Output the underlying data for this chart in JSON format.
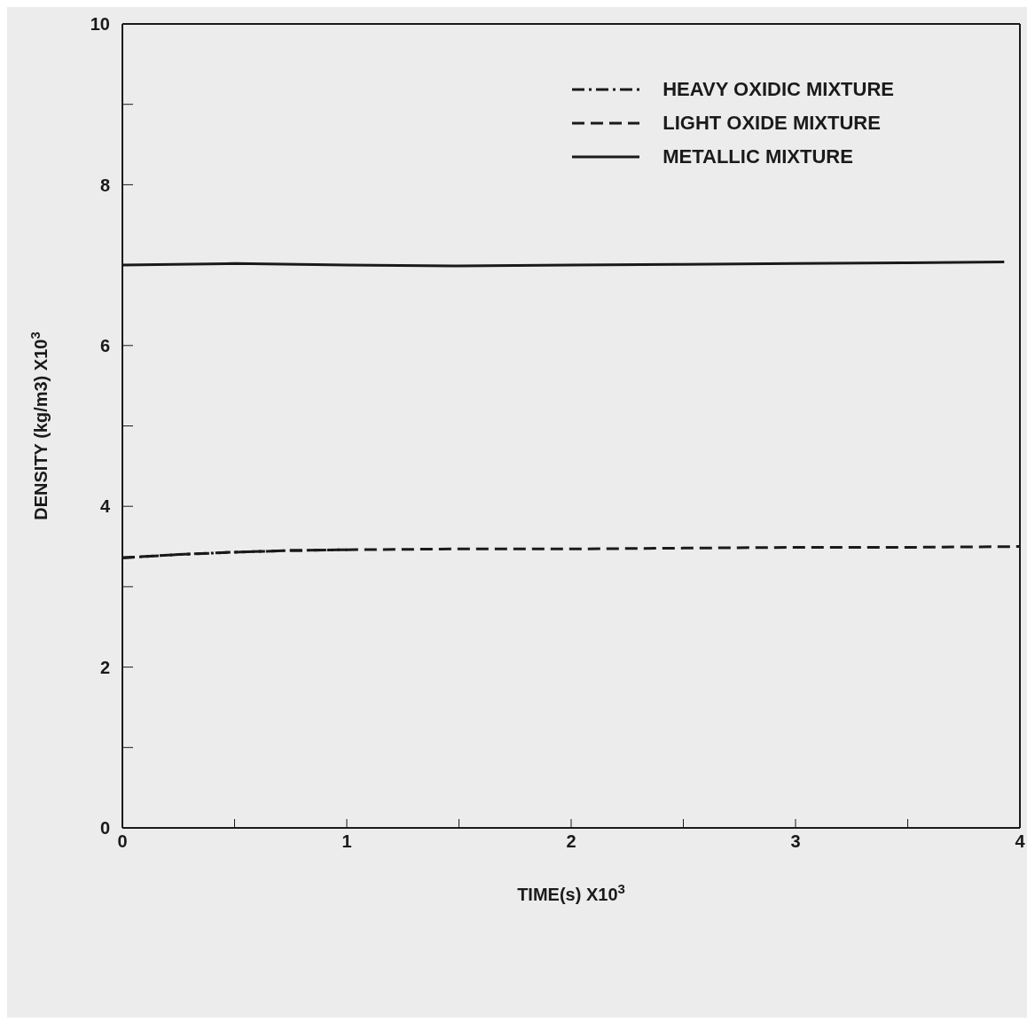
{
  "chart_data": {
    "type": "line",
    "xlabel": "TIME(s) X10$^{3}$",
    "ylabel": "DENSITY (kg/m3) X10$^{3}$",
    "xlim": [
      0,
      4
    ],
    "xticks": [
      0,
      {
        "value": 0.5,
        "label": null
      },
      1,
      {
        "value": 1.5,
        "label": null
      },
      2,
      {
        "value": 2.5,
        "label": null
      },
      3,
      {
        "value": 3.5,
        "label": null
      },
      4
    ],
    "ylim": [
      0,
      10
    ],
    "yticks": [
      0,
      {
        "value": 1,
        "label": null
      },
      2,
      {
        "value": 3,
        "label": null
      },
      4,
      {
        "value": 5,
        "label": null
      },
      6,
      {
        "value": 7,
        "label": null
      },
      8,
      {
        "value": 9,
        "label": null
      },
      10
    ],
    "legend": "top right",
    "marker": "none",
    "series": [
      {
        "name": "HEAVY OXIDIC MIXTURE",
        "color": "#1a1a1a",
        "line_style": "dashdot",
        "x": [
          0,
          0.25,
          0.5,
          0.75,
          1
        ],
        "values": [
          3.36,
          3.4,
          3.43,
          3.45,
          3.46
        ]
      },
      {
        "name": "LIGHT OXIDE MIXTURE",
        "color": "#1a1a1a",
        "line_style": "dashed",
        "x": [
          0,
          0.25,
          0.5,
          0.75,
          1,
          1.5,
          2,
          2.5,
          3,
          3.5,
          4
        ],
        "values": [
          3.36,
          3.4,
          3.43,
          3.45,
          3.46,
          3.47,
          3.47,
          3.48,
          3.49,
          3.49,
          3.5
        ]
      },
      {
        "name": "METALLIC MIXTURE",
        "color": "#1a1a1a",
        "line_style": "solid",
        "x": [
          0,
          0.5,
          1,
          1.5,
          2,
          2.5,
          3,
          3.5,
          3.93
        ],
        "values": [
          7.0,
          7.02,
          7.0,
          6.99,
          7.0,
          7.01,
          7.02,
          7.03,
          7.04
        ]
      }
    ]
  }
}
